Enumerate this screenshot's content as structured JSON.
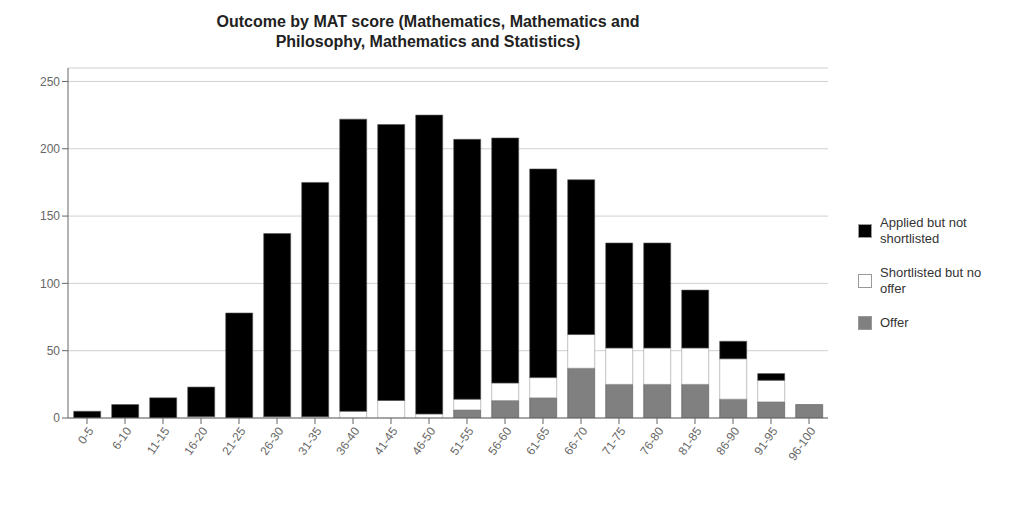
{
  "chart_data": {
    "type": "bar",
    "title": "Outcome by MAT score (Mathematics, Mathematics and\nPhilosophy, Mathematics and Statistics)",
    "categories": [
      "0-5",
      "6-10",
      "11-15",
      "16-20",
      "21-25",
      "26-30",
      "31-35",
      "36-40",
      "41-45",
      "46-50",
      "51-55",
      "56-60",
      "61-65",
      "66-70",
      "71-75",
      "76-80",
      "81-85",
      "86-90",
      "91-95",
      "96-100"
    ],
    "series": [
      {
        "name": "Applied but not\nshortlisted",
        "color": "#000000",
        "values": [
          5,
          10,
          15,
          22,
          78,
          136,
          174,
          217,
          205,
          222,
          193,
          182,
          155,
          115,
          78,
          78,
          43,
          13,
          5,
          0
        ]
      },
      {
        "name": "Shortlisted but no\noffer",
        "color": "#ffffff",
        "values": [
          0,
          0,
          0,
          1,
          0,
          1,
          1,
          5,
          13,
          3,
          8,
          13,
          15,
          25,
          27,
          27,
          27,
          30,
          16,
          0
        ]
      },
      {
        "name": "Offer",
        "color": "#808080",
        "values": [
          0,
          0,
          0,
          0,
          0,
          0,
          0,
          0,
          0,
          0,
          6,
          13,
          15,
          37,
          25,
          25,
          25,
          14,
          12,
          10
        ]
      }
    ],
    "stacked": true,
    "ylim": [
      0,
      260
    ],
    "yticks": [
      0,
      50,
      100,
      150,
      200,
      250
    ],
    "grid": true,
    "legend": "right"
  }
}
